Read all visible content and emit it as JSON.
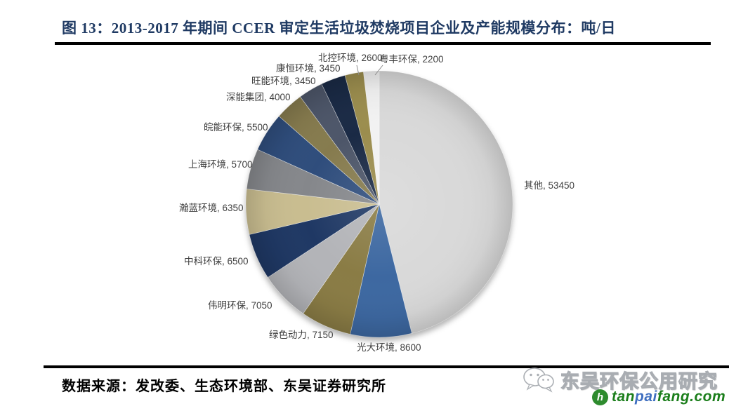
{
  "figure": {
    "title": "图 13：2013-2017 年期间 CCER 审定生活垃圾焚烧项目企业及产能规模分布：吨/日",
    "source": "数据来源：发改委、生态环境部、东吴证券研究所"
  },
  "chart_data": {
    "type": "pie",
    "title": "2013-2017 年期间 CCER 审定生活垃圾焚烧项目企业及产能规模分布",
    "unit": "吨/日",
    "total": 116000,
    "start_angle_deg": 0,
    "direction": "clockwise",
    "label_format": "{label}, {value}",
    "slices": [
      {
        "label": "其他",
        "value": 53450,
        "color": "#d9d9d9"
      },
      {
        "label": "光大环境",
        "value": 8600,
        "color": "#3d68a1"
      },
      {
        "label": "绿色动力",
        "value": 7150,
        "color": "#8a7c45"
      },
      {
        "label": "伟明环保",
        "value": 7050,
        "color": "#b3b4b8"
      },
      {
        "label": "中科环保",
        "value": 6500,
        "color": "#1f3864"
      },
      {
        "label": "瀚蓝环境",
        "value": 6350,
        "color": "#c9bd90"
      },
      {
        "label": "上海环境",
        "value": 5700,
        "color": "#85878b"
      },
      {
        "label": "皖能环保",
        "value": 5500,
        "color": "#2f4d7c"
      },
      {
        "label": "深能集团",
        "value": 4000,
        "color": "#867b4e"
      },
      {
        "label": "旺能环境",
        "value": 3450,
        "color": "#4d5669"
      },
      {
        "label": "康恒环境",
        "value": 3450,
        "color": "#1a2a45"
      },
      {
        "label": "北控环境",
        "value": 2600,
        "color": "#9b8d4e"
      },
      {
        "label": "粤丰环保",
        "value": 2200,
        "color": "#f2f2f2"
      }
    ]
  },
  "watermark": {
    "wechat_name": "东吴环保公用研究",
    "site_logo_parts": {
      "tan": "tan",
      "pai": "pai",
      "fang": "fang.com"
    },
    "site_green": "#1b7e1b",
    "site_blue": "#3f6fc0"
  }
}
